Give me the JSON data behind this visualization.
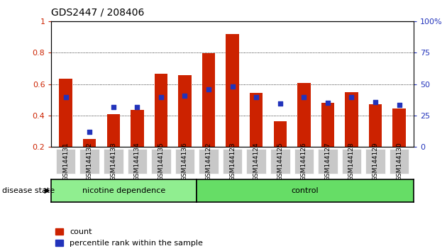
{
  "title": "GDS2447 / 208406",
  "samples": [
    "GSM144131",
    "GSM144132",
    "GSM144133",
    "GSM144134",
    "GSM144135",
    "GSM144136",
    "GSM144122",
    "GSM144123",
    "GSM144124",
    "GSM144125",
    "GSM144126",
    "GSM144127",
    "GSM144128",
    "GSM144129",
    "GSM144130"
  ],
  "red_bars": [
    0.635,
    0.25,
    0.41,
    0.435,
    0.665,
    0.655,
    0.795,
    0.92,
    0.545,
    0.365,
    0.605,
    0.48,
    0.55,
    0.47,
    0.445
  ],
  "blue_dots": [
    0.515,
    0.295,
    0.455,
    0.455,
    0.515,
    0.525,
    0.565,
    0.585,
    0.515,
    0.475,
    0.515,
    0.48,
    0.515,
    0.485,
    0.465
  ],
  "ylim": [
    0.2,
    1.0
  ],
  "yticks_left": [
    0.2,
    0.4,
    0.6,
    0.8,
    1.0
  ],
  "ytick_left_labels": [
    "0.2",
    "0.4",
    "0.6",
    "0.8",
    "1"
  ],
  "yticks_right_vals": [
    0.2,
    0.4,
    0.6,
    0.8,
    1.0
  ],
  "yticks_right_labels": [
    "0",
    "25",
    "50",
    "75",
    "100%"
  ],
  "grid_yticks": [
    0.4,
    0.6,
    0.8,
    1.0
  ],
  "red_color": "#CC2200",
  "blue_color": "#2233BB",
  "bg_color": "#ffffff",
  "tick_color_left": "#CC2200",
  "tick_color_right": "#2233BB",
  "xlabel_bg": "#C8C8C8",
  "group1_label": "nicotine dependence",
  "group1_color": "#90EE90",
  "group1_count": 6,
  "group2_label": "control",
  "group2_color": "#66DD66",
  "group2_count": 9,
  "disease_state_label": "disease state",
  "legend_count": "count",
  "legend_pct": "percentile rank within the sample",
  "bar_bottom": 0.2
}
